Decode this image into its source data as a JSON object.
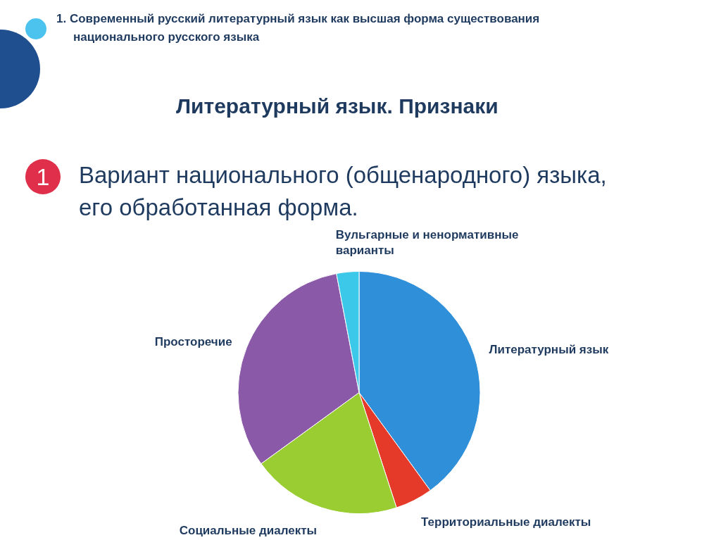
{
  "chart_data": {
    "type": "pie",
    "title": "Литературный язык. Признаки",
    "subtitle": "Вариант национального (общенародного) языка, его обработанная форма.",
    "annotations": [
      "1. Современный русский литературный язык как высшая форма существования национального русского языка",
      "1"
    ],
    "categories": [
      "Литературный язык",
      "Территориальные диалекты",
      "Социальные диалекты",
      "Просторечие",
      "Вульгарные и ненормативные варианты"
    ],
    "values": [
      40,
      5,
      20,
      32,
      3
    ],
    "colors": [
      "#2f8fd8",
      "#e53a2a",
      "#9acd32",
      "#8a5aa8",
      "#3cc8e8"
    ],
    "legend": false
  }
}
